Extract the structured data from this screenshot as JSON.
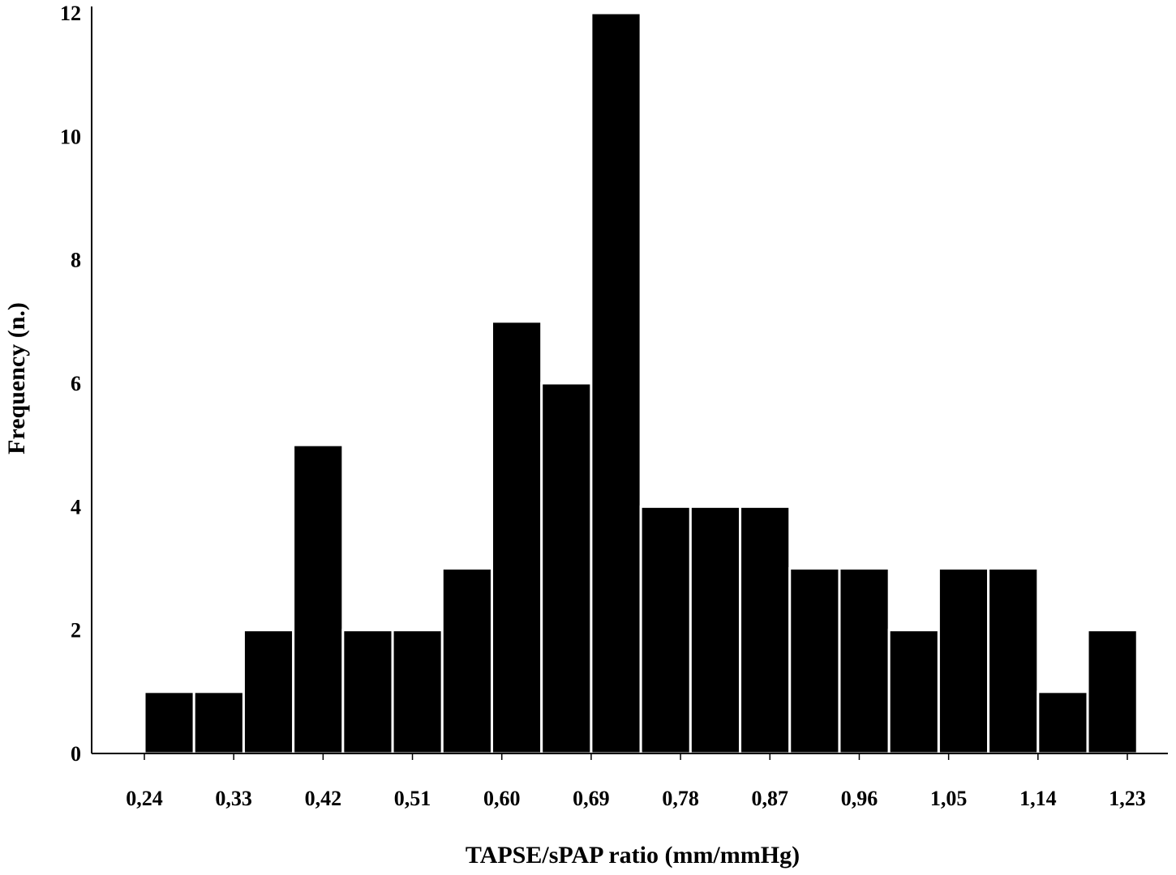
{
  "chart_data": {
    "type": "bar",
    "subtype": "histogram",
    "xlabel": "TAPSE/sPAP ratio (mm/mmHg)",
    "ylabel": "Frequency (n.)",
    "x_tick_labels": [
      "0,24",
      "0,33",
      "0,42",
      "0,51",
      "0,60",
      "0,69",
      "0,78",
      "0,87",
      "0,96",
      "1,05",
      "1,14",
      "1,23"
    ],
    "x_tick_values": [
      0.24,
      0.33,
      0.42,
      0.51,
      0.6,
      0.69,
      0.78,
      0.87,
      0.96,
      1.05,
      1.14,
      1.23
    ],
    "y_ticks": [
      "0",
      "2",
      "4",
      "6",
      "8",
      "10",
      "12"
    ],
    "y_tick_values": [
      0,
      2,
      4,
      6,
      8,
      10,
      12
    ],
    "xlim": [
      0.239,
      1.284
    ],
    "ylim": [
      0,
      12
    ],
    "bin_starts": [
      0.24,
      0.29,
      0.34,
      0.39,
      0.44,
      0.49,
      0.54,
      0.59,
      0.64,
      0.69,
      0.74,
      0.79,
      0.84,
      0.89,
      0.94,
      0.99,
      1.04,
      1.09,
      1.14,
      1.19
    ],
    "bin_width": 0.05,
    "values": [
      1,
      1,
      2,
      5,
      2,
      2,
      3,
      7,
      6,
      12,
      4,
      4,
      4,
      3,
      3,
      2,
      3,
      3,
      1,
      2
    ],
    "bar_color": "#000000",
    "bar_edge_color": "#ffffff",
    "grid": false,
    "legend": "none"
  }
}
